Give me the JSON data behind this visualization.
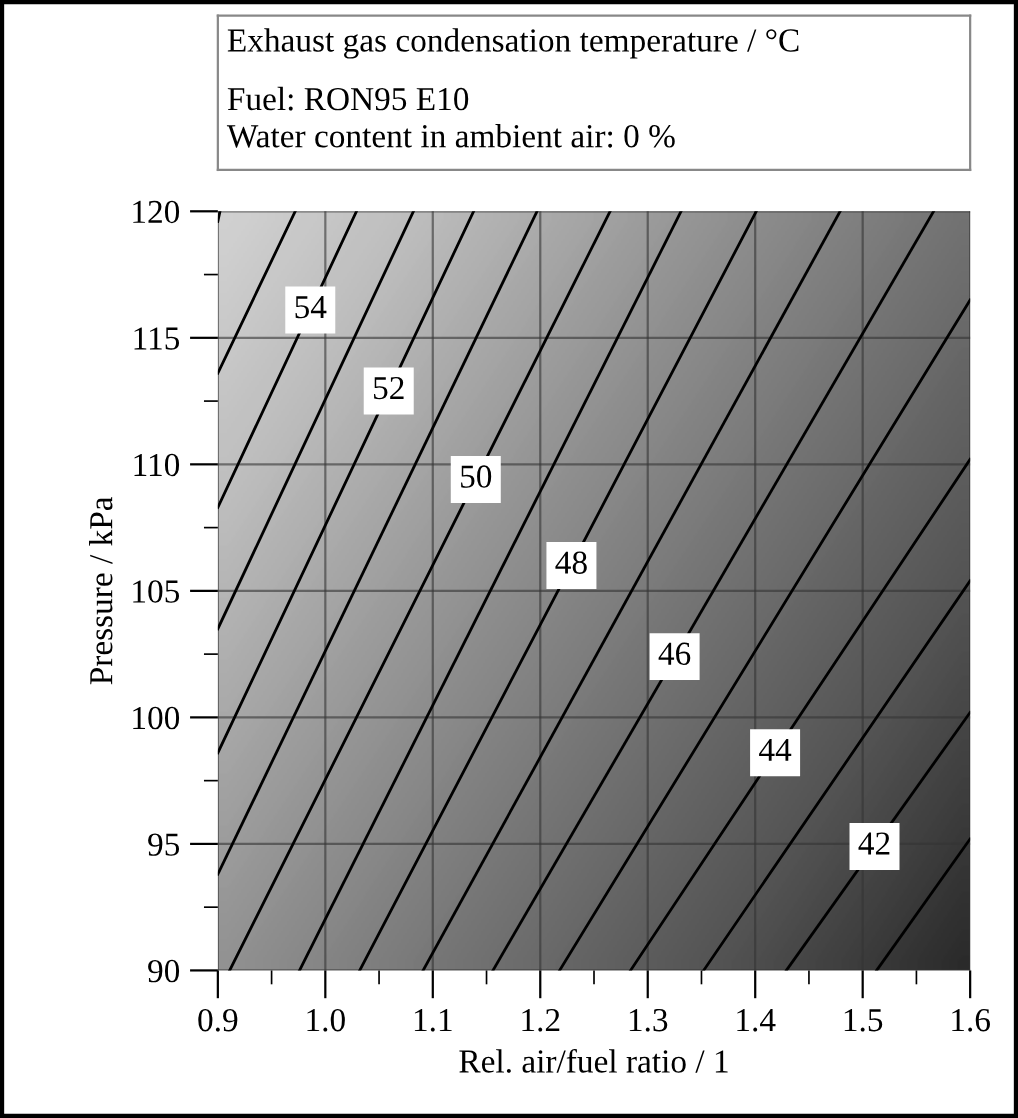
{
  "chart_data": {
    "type": "line",
    "title": "Exhaust gas condensation temperature / °C",
    "subtitle": "Fuel: RON95 E10\nWater content in ambient air: 0 %",
    "xlabel": "Rel. air/fuel ratio / 1",
    "ylabel": "Pressure / kPa",
    "xlim": [
      0.9,
      1.6
    ],
    "ylim": [
      90,
      120
    ],
    "xticks": [
      0.9,
      {
        "value": 1.0,
        "label": "1.0"
      },
      1.1,
      1.2,
      1.3,
      1.4,
      1.5,
      1.6
    ],
    "yticks": [
      90,
      95,
      100,
      105,
      110,
      115,
      120
    ],
    "grid": true,
    "legend": false,
    "line_style": "solid",
    "marker": "none",
    "series": [
      {
        "color": "#000000",
        "x": [
          0.9,
          0.902
        ],
        "values": [
          119.6,
          120
        ]
      },
      {
        "color": "#000000",
        "x": [
          0.9,
          0.972
        ],
        "values": [
          113.6,
          120
        ]
      },
      {
        "color": "#000000",
        "x": [
          0.9,
          1.029
        ],
        "values": [
          108.3,
          120
        ]
      },
      {
        "color": "#000000",
        "x": [
          0.9,
          1.082
        ],
        "values": [
          103.5,
          120
        ]
      },
      {
        "color": "#000000",
        "x": [
          0.9,
          1.138
        ],
        "values": [
          98.6,
          120
        ]
      },
      {
        "color": "#000000",
        "x": [
          0.9,
          1.197
        ],
        "values": [
          93.8,
          120
        ]
      },
      {
        "color": "#000000",
        "x": [
          0.911,
          1.265
        ],
        "values": [
          90,
          120
        ]
      },
      {
        "color": "#000000",
        "x": [
          0.976,
          1.331
        ],
        "values": [
          90,
          120
        ]
      },
      {
        "color": "#000000",
        "x": [
          1.032,
          1.401
        ],
        "values": [
          90,
          120
        ]
      },
      {
        "color": "#000000",
        "x": [
          1.091,
          1.479
        ],
        "values": [
          90,
          120
        ]
      },
      {
        "color": "#000000",
        "x": [
          1.156,
          1.566
        ],
        "values": [
          90,
          120
        ]
      },
      {
        "color": "#000000",
        "x": [
          1.218,
          1.6
        ],
        "values": [
          90,
          116.5
        ]
      },
      {
        "color": "#000000",
        "x": [
          1.284,
          1.6
        ],
        "values": [
          90,
          110.2
        ]
      },
      {
        "color": "#000000",
        "x": [
          1.352,
          1.6
        ],
        "values": [
          90,
          105.4
        ]
      },
      {
        "color": "#000000",
        "x": [
          1.429,
          1.6
        ],
        "values": [
          90,
          100.2
        ]
      },
      {
        "color": "#000000",
        "x": [
          1.513,
          1.6
        ],
        "values": [
          90,
          95.2
        ]
      }
    ],
    "annotations": [
      {
        "text": "54",
        "x": 0.986,
        "y": 116.1
      },
      {
        "text": "52",
        "x": 1.059,
        "y": 112.9
      },
      {
        "text": "50",
        "x": 1.14,
        "y": 109.4
      },
      {
        "text": "48",
        "x": 1.229,
        "y": 106.0
      },
      {
        "text": "46",
        "x": 1.325,
        "y": 102.4
      },
      {
        "text": "44",
        "x": 1.4185,
        "y": 98.6
      },
      {
        "text": "42",
        "x": 1.511,
        "y": 94.9
      }
    ]
  }
}
